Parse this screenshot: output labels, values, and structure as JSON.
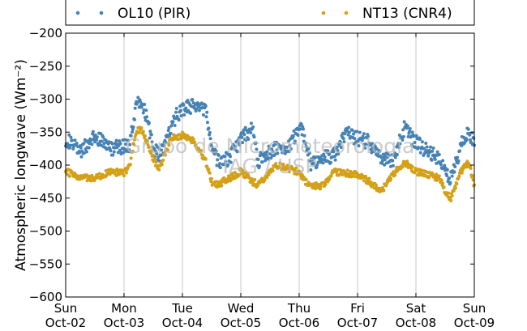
{
  "chart_data": {
    "type": "scatter",
    "ylabel": "Atmospheric longwave (Wm⁻²)",
    "ylim": [
      -600,
      -200
    ],
    "yticks": [
      -200,
      -250,
      -300,
      -350,
      -400,
      -450,
      -500,
      -550,
      -600
    ],
    "ytick_labels": [
      "−200",
      "−250",
      "−300",
      "−350",
      "−400",
      "−450",
      "−500",
      "−550",
      "−600"
    ],
    "xlim": [
      0,
      7
    ],
    "xticks": [
      {
        "day": "Sun",
        "date": "Oct-02"
      },
      {
        "day": "Mon",
        "date": "Oct-03"
      },
      {
        "day": "Tue",
        "date": "Oct-04"
      },
      {
        "day": "Wed",
        "date": "Oct-05"
      },
      {
        "day": "Thu",
        "date": "Oct-06"
      },
      {
        "day": "Fri",
        "date": "Oct-07"
      },
      {
        "day": "Sat",
        "date": "Oct-08"
      },
      {
        "day": "Sun",
        "date": "Oct-09"
      }
    ],
    "grid": "vertical",
    "legend_placement": "top",
    "series": [
      {
        "name": "OL10 (PIR)",
        "color": "#4682b4",
        "x": [
          0.0,
          0.25,
          0.5,
          0.75,
          1.0,
          1.1,
          1.2,
          1.3,
          1.4,
          1.5,
          1.6,
          1.7,
          1.8,
          1.9,
          2.0,
          2.2,
          2.4,
          2.5,
          2.6,
          2.8,
          3.0,
          3.2,
          3.3,
          3.4,
          3.6,
          3.8,
          4.0,
          4.1,
          4.2,
          4.4,
          4.6,
          4.8,
          5.0,
          5.2,
          5.4,
          5.6,
          5.8,
          6.0,
          6.2,
          6.4,
          6.5,
          6.6,
          6.7,
          6.8,
          6.9,
          7.0
        ],
        "y": [
          -360,
          -380,
          -355,
          -375,
          -372,
          -368,
          -310,
          -305,
          -330,
          -375,
          -385,
          -370,
          -345,
          -325,
          -315,
          -310,
          -320,
          -370,
          -395,
          -390,
          -360,
          -345,
          -395,
          -385,
          -375,
          -375,
          -345,
          -355,
          -400,
          -390,
          -385,
          -350,
          -360,
          -365,
          -390,
          -395,
          -345,
          -365,
          -380,
          -390,
          -410,
          -420,
          -395,
          -360,
          -350,
          -370
        ]
      },
      {
        "name": "NT13 (CNR4)",
        "color": "#d4a017",
        "x": [
          0.0,
          0.25,
          0.5,
          0.75,
          1.0,
          1.1,
          1.2,
          1.3,
          1.4,
          1.5,
          1.6,
          1.7,
          1.8,
          1.9,
          2.0,
          2.2,
          2.4,
          2.5,
          2.6,
          2.8,
          3.0,
          3.2,
          3.3,
          3.4,
          3.6,
          3.8,
          4.0,
          4.1,
          4.2,
          4.4,
          4.6,
          4.8,
          5.0,
          5.2,
          5.4,
          5.6,
          5.8,
          6.0,
          6.2,
          6.4,
          6.5,
          6.6,
          6.7,
          6.8,
          6.9,
          7.0
        ],
        "y": [
          -410,
          -418,
          -420,
          -410,
          -412,
          -400,
          -350,
          -345,
          -365,
          -390,
          -405,
          -385,
          -360,
          -358,
          -355,
          -365,
          -395,
          -425,
          -430,
          -420,
          -410,
          -425,
          -430,
          -420,
          -400,
          -405,
          -410,
          -425,
          -430,
          -432,
          -410,
          -412,
          -415,
          -425,
          -440,
          -415,
          -395,
          -410,
          -415,
          -420,
          -440,
          -450,
          -425,
          -405,
          -395,
          -430
        ]
      }
    ]
  },
  "legend": {
    "items": [
      {
        "label": "OL10 (PIR)",
        "color": "#4682b4"
      },
      {
        "label": "NT13 (CNR4)",
        "color": "#d4a017"
      }
    ]
  },
  "watermark": {
    "line1": "Grupo de Micrometeorologia",
    "line2": "IAG / USP"
  }
}
